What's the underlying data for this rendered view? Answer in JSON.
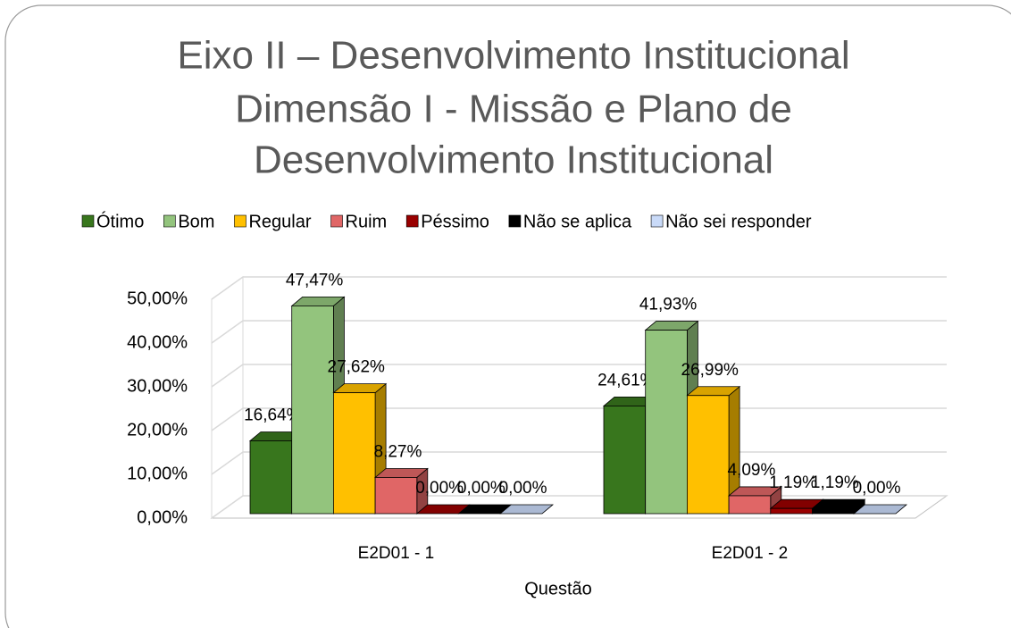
{
  "chart_data": {
    "type": "bar3d",
    "title": [
      "Eixo II – Desenvolvimento Institucional",
      "Dimensão I - Missão e Plano de",
      "Desenvolvimento Institucional"
    ],
    "x_label": "Questão",
    "categories": [
      "E2D01 - 1",
      "E2D01 - 2"
    ],
    "series": [
      {
        "name": "Ótimo",
        "color": "#38761d",
        "values": [
          16.64,
          24.61
        ],
        "value_labels": [
          "16,64%",
          "24,61%"
        ]
      },
      {
        "name": "Bom",
        "color": "#93c47d",
        "values": [
          47.47,
          41.93
        ],
        "value_labels": [
          "47,47%",
          "41,93%"
        ]
      },
      {
        "name": "Regular",
        "color": "#ffc000",
        "values": [
          27.62,
          26.99
        ],
        "value_labels": [
          "27,62%",
          "26,99%"
        ]
      },
      {
        "name": "Ruim",
        "color": "#e06666",
        "values": [
          8.27,
          4.09
        ],
        "value_labels": [
          "8,27%",
          "4,09%"
        ]
      },
      {
        "name": "Péssimo",
        "color": "#990000",
        "values": [
          0.0,
          1.19
        ],
        "value_labels": [
          "0,00%",
          "1,19%"
        ]
      },
      {
        "name": "Não se aplica",
        "color": "#000000",
        "values": [
          0.0,
          1.19
        ],
        "value_labels": [
          "0,00%",
          "1,19%"
        ]
      },
      {
        "name": "Não sei responder",
        "color": "#c9daf8",
        "values": [
          0.0,
          0.0
        ],
        "value_labels": [
          "0,00%",
          "0,00%"
        ]
      }
    ],
    "ylim": [
      0,
      50
    ],
    "yticks": [
      {
        "value": 0,
        "label": "0,00%"
      },
      {
        "value": 10,
        "label": "10,00%"
      },
      {
        "value": 20,
        "label": "20,00%"
      },
      {
        "value": 30,
        "label": "30,00%"
      },
      {
        "value": 40,
        "label": "40,00%"
      },
      {
        "value": 50,
        "label": "50,00%"
      }
    ],
    "grid": true,
    "legend": "top"
  }
}
